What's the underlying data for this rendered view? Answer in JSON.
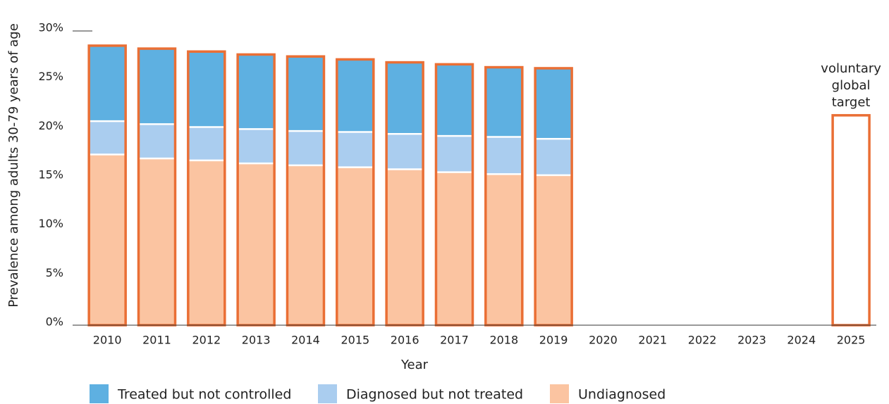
{
  "chart_data": {
    "type": "stacked_bar",
    "x_label": "Year",
    "y_label": "Prevalence among adults 30-79 years of age",
    "categories": [
      "2010",
      "2011",
      "2012",
      "2013",
      "2014",
      "2015",
      "2016",
      "2017",
      "2018",
      "2019",
      "2020",
      "2021",
      "2022",
      "2023",
      "2024",
      "2025"
    ],
    "series": [
      {
        "name": "Undiagnosed",
        "color": "#fbc4a1",
        "values": [
          17.4,
          17.0,
          16.8,
          16.5,
          16.3,
          16.1,
          15.9,
          15.6,
          15.4,
          15.3,
          null,
          null,
          null,
          null,
          null,
          null
        ]
      },
      {
        "name": "Diagnosed but not treated",
        "color": "#aacdef",
        "values": [
          3.4,
          3.5,
          3.4,
          3.5,
          3.5,
          3.6,
          3.6,
          3.7,
          3.8,
          3.7,
          null,
          null,
          null,
          null,
          null,
          null
        ]
      },
      {
        "name": "Treated but not controlled",
        "color": "#5eb0e1",
        "values": [
          7.7,
          7.7,
          7.7,
          7.6,
          7.6,
          7.4,
          7.3,
          7.3,
          7.1,
          7.2,
          null,
          null,
          null,
          null,
          null,
          null
        ]
      }
    ],
    "legend_order": [
      2,
      1,
      0
    ],
    "outline_color": "#ea6f35",
    "target": {
      "lines": [
        "voluntary",
        "global",
        "target"
      ],
      "values": [
        null,
        null,
        null,
        null,
        null,
        null,
        null,
        null,
        null,
        null,
        null,
        null,
        null,
        null,
        null,
        21.4
      ]
    },
    "ylim": [
      0,
      30
    ],
    "yticks": [
      {
        "value": 0,
        "label": "0%"
      },
      {
        "value": 5,
        "label": "5%"
      },
      {
        "value": 10,
        "label": "10%"
      },
      {
        "value": 15,
        "label": "15%"
      },
      {
        "value": 20,
        "label": "20%"
      },
      {
        "value": 25,
        "label": "25%"
      },
      {
        "value": 30,
        "label": "30%"
      }
    ]
  }
}
